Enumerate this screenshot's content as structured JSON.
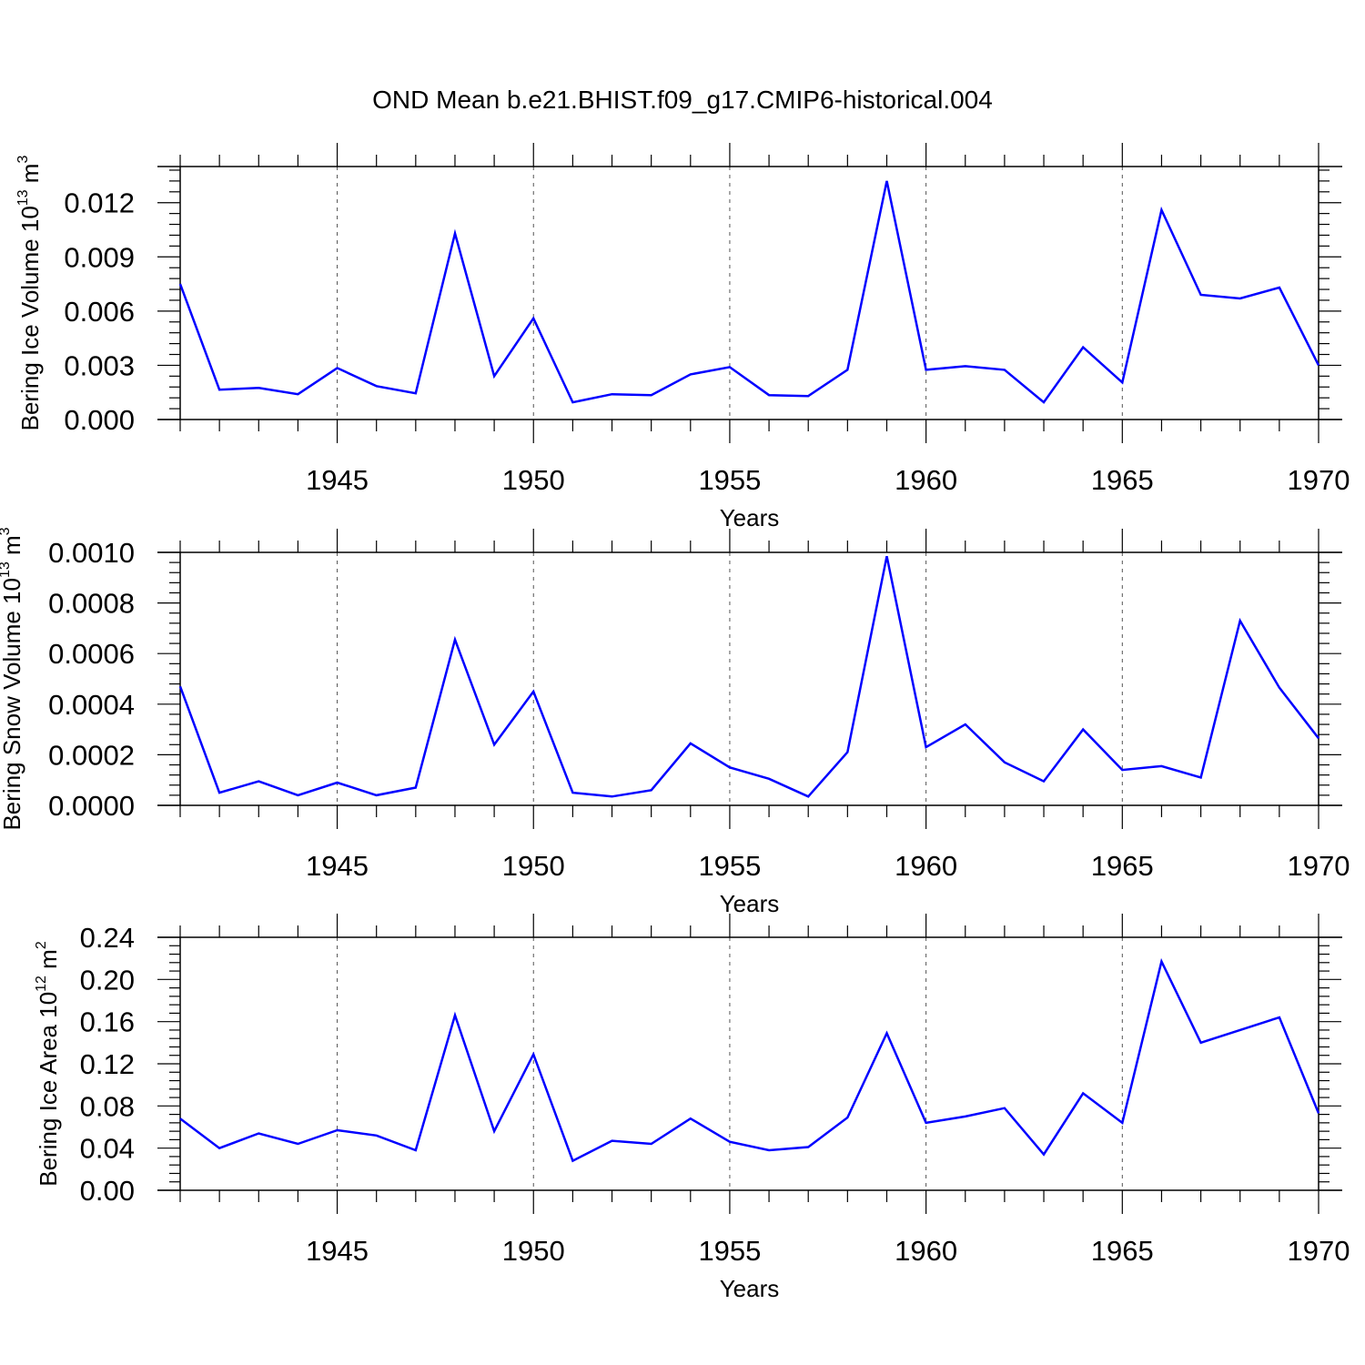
{
  "title": "OND Mean b.e21.BHIST.f09_g17.CMIP6-historical.004",
  "colors": {
    "line": "#0000ff",
    "axis": "#000000",
    "grid": "#555555"
  },
  "chart_data": [
    {
      "type": "line",
      "xlabel": "Years",
      "ylabel": {
        "text": "Bering Ice Volume 10",
        "exp": "13",
        "unit": " m",
        "unit_exp": "3"
      },
      "xlim": [
        1941,
        1970
      ],
      "ylim": [
        0.0,
        0.014
      ],
      "yticks": [
        "0.000",
        "0.003",
        "0.006",
        "0.009",
        "0.012"
      ],
      "ytick_values": [
        0.0,
        0.003,
        0.006,
        0.009,
        0.012
      ],
      "xticks": [
        "1945",
        "1950",
        "1955",
        "1960",
        "1965",
        "1970"
      ],
      "xtick_values": [
        1945,
        1950,
        1955,
        1960,
        1965,
        1970
      ],
      "x": [
        1941,
        1942,
        1943,
        1944,
        1945,
        1946,
        1947,
        1948,
        1949,
        1950,
        1951,
        1952,
        1953,
        1954,
        1955,
        1956,
        1957,
        1958,
        1959,
        1960,
        1961,
        1962,
        1963,
        1964,
        1965,
        1966,
        1967,
        1968,
        1969,
        1970
      ],
      "values": [
        0.0075,
        0.00165,
        0.00175,
        0.0014,
        0.00285,
        0.00185,
        0.00145,
        0.0103,
        0.0024,
        0.0056,
        0.00095,
        0.0014,
        0.00135,
        0.0025,
        0.0029,
        0.00135,
        0.0013,
        0.00275,
        0.0132,
        0.00275,
        0.00295,
        0.00275,
        0.00095,
        0.004,
        0.00205,
        0.0116,
        0.0069,
        0.0067,
        0.0073,
        0.003
      ]
    },
    {
      "type": "line",
      "xlabel": "Years",
      "ylabel": {
        "text": "Bering Snow Volume 10",
        "exp": "13",
        "unit": " m",
        "unit_exp": "3"
      },
      "xlim": [
        1941,
        1970
      ],
      "ylim": [
        0.0,
        0.001
      ],
      "yticks": [
        "0.0000",
        "0.0002",
        "0.0004",
        "0.0006",
        "0.0008",
        "0.0010"
      ],
      "ytick_values": [
        0.0,
        0.0002,
        0.0004,
        0.0006,
        0.0008,
        0.001
      ],
      "xticks": [
        "1945",
        "1950",
        "1955",
        "1960",
        "1965",
        "1970"
      ],
      "xtick_values": [
        1945,
        1950,
        1955,
        1960,
        1965,
        1970
      ],
      "x": [
        1941,
        1942,
        1943,
        1944,
        1945,
        1946,
        1947,
        1948,
        1949,
        1950,
        1951,
        1952,
        1953,
        1954,
        1955,
        1956,
        1957,
        1958,
        1959,
        1960,
        1961,
        1962,
        1963,
        1964,
        1965,
        1966,
        1967,
        1968,
        1969,
        1970
      ],
      "values": [
        0.00047,
        5e-05,
        9.5e-05,
        4e-05,
        9e-05,
        4e-05,
        7e-05,
        0.000655,
        0.00024,
        0.00045,
        5e-05,
        3.5e-05,
        6e-05,
        0.000245,
        0.00015,
        0.000105,
        3.5e-05,
        0.00021,
        0.000985,
        0.00023,
        0.00032,
        0.00017,
        9.5e-05,
        0.0003,
        0.00014,
        0.000155,
        0.00011,
        0.00073,
        0.000465,
        0.000265
      ]
    },
    {
      "type": "line",
      "xlabel": "Years",
      "ylabel": {
        "text": "Bering Ice Area 10",
        "exp": "12",
        "unit": " m",
        "unit_exp": "2"
      },
      "xlim": [
        1941,
        1970
      ],
      "ylim": [
        0.0,
        0.24
      ],
      "yticks": [
        "0.00",
        "0.04",
        "0.08",
        "0.12",
        "0.16",
        "0.20",
        "0.24"
      ],
      "ytick_values": [
        0.0,
        0.04,
        0.08,
        0.12,
        0.16,
        0.2,
        0.24
      ],
      "xticks": [
        "1945",
        "1950",
        "1955",
        "1960",
        "1965",
        "1970"
      ],
      "xtick_values": [
        1945,
        1950,
        1955,
        1960,
        1965,
        1970
      ],
      "x": [
        1941,
        1942,
        1943,
        1944,
        1945,
        1946,
        1947,
        1948,
        1949,
        1950,
        1951,
        1952,
        1953,
        1954,
        1955,
        1956,
        1957,
        1958,
        1959,
        1960,
        1961,
        1962,
        1963,
        1964,
        1965,
        1966,
        1967,
        1968,
        1969,
        1970
      ],
      "values": [
        0.068,
        0.04,
        0.054,
        0.044,
        0.057,
        0.052,
        0.038,
        0.166,
        0.056,
        0.129,
        0.028,
        0.047,
        0.044,
        0.068,
        0.046,
        0.038,
        0.041,
        0.069,
        0.149,
        0.064,
        0.07,
        0.078,
        0.034,
        0.092,
        0.064,
        0.217,
        0.14,
        0.152,
        0.164,
        0.073
      ]
    }
  ]
}
